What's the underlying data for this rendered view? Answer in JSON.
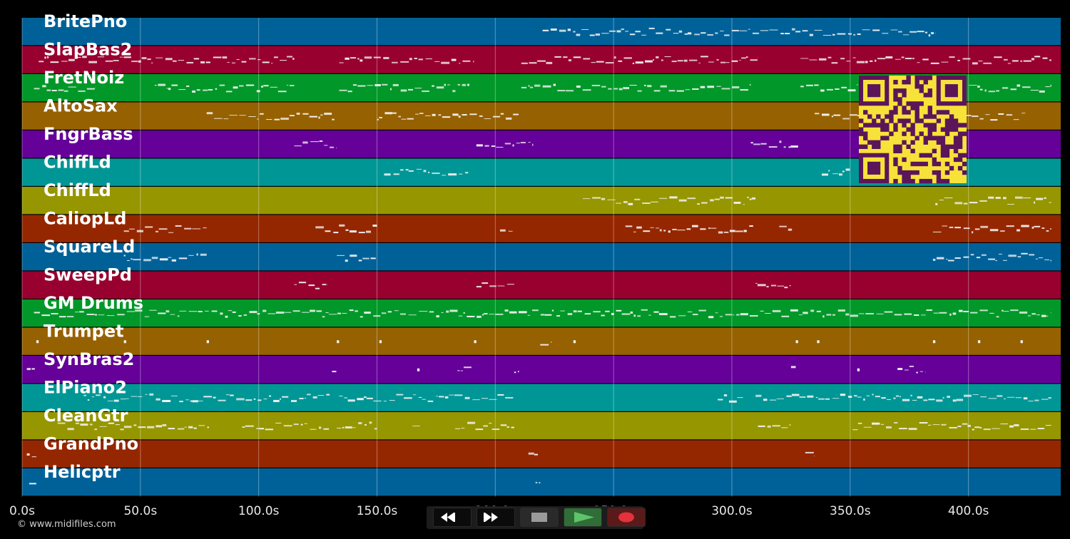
{
  "app": {
    "copyright": "© www.midifiles.com"
  },
  "timeline": {
    "ticks": [
      "0.0s",
      "50.0s",
      "100.0s",
      "150.0s",
      "200.0s",
      "250.0s",
      "300.0s",
      "350.0s",
      "400.0s"
    ],
    "duration_s": 439
  },
  "colors": {
    "background": "#000000",
    "grid": "#ffffff",
    "note": "#f2f2f2",
    "qr_background": "#f7e23a",
    "qr_foreground": "#5b1659",
    "play_accent": "#5ec36b",
    "record_accent": "#e2323c"
  },
  "tracks": [
    {
      "name": "BritePno",
      "color": "#006199",
      "notes": [
        [
          220,
          386
        ]
      ]
    },
    {
      "name": "SlapBas2",
      "color": "#980030",
      "notes": [
        [
          7,
          115
        ],
        [
          134,
          191
        ],
        [
          211,
          311
        ],
        [
          329,
          435
        ]
      ]
    },
    {
      "name": "FretNoiz",
      "color": "#019829",
      "notes": [
        [
          5,
          31
        ],
        [
          56,
          115
        ],
        [
          134,
          189
        ],
        [
          211,
          308
        ],
        [
          329,
          435
        ]
      ]
    },
    {
      "name": "AltoSax",
      "color": "#966100",
      "notes": [
        [
          78,
          132
        ],
        [
          150,
          210
        ],
        [
          335,
          355
        ],
        [
          399,
          424
        ]
      ]
    },
    {
      "name": "FngrBass",
      "color": "#650099",
      "notes": [
        [
          115,
          133
        ],
        [
          192,
          216
        ],
        [
          308,
          328
        ]
      ]
    },
    {
      "name": "ChiffLd",
      "color": "#009696",
      "notes": [
        [
          153,
          189
        ],
        [
          338,
          350
        ]
      ]
    },
    {
      "name": "ChiffLd",
      "color": "#969600",
      "notes": [
        [
          237,
          310
        ],
        [
          386,
          435
        ]
      ]
    },
    {
      "name": "CaliopLd",
      "color": "#952700",
      "notes": [
        [
          43,
          78
        ],
        [
          124,
          150
        ],
        [
          202,
          208
        ],
        [
          255,
          309
        ],
        [
          320,
          326
        ],
        [
          385,
          435
        ]
      ]
    },
    {
      "name": "SquareLd",
      "color": "#006199",
      "notes": [
        [
          43,
          78
        ],
        [
          133,
          150
        ],
        [
          385,
          435
        ]
      ]
    },
    {
      "name": "SweepPd",
      "color": "#980030",
      "notes": [
        [
          115,
          129
        ],
        [
          192,
          208
        ],
        [
          310,
          325
        ]
      ]
    },
    {
      "name": "GM Drums",
      "color": "#019829",
      "notes": [
        [
          5,
          435
        ]
      ]
    },
    {
      "name": "Trumpet",
      "color": "#966100",
      "notes": [
        [
          6,
          7
        ],
        [
          43,
          44
        ],
        [
          78,
          79
        ],
        [
          133,
          134
        ],
        [
          151,
          152
        ],
        [
          191,
          192
        ],
        [
          219,
          224
        ],
        [
          233,
          234
        ],
        [
          327,
          328
        ],
        [
          336,
          337
        ],
        [
          385,
          386
        ],
        [
          404,
          405
        ],
        [
          422,
          423
        ]
      ]
    },
    {
      "name": "SynBras2",
      "color": "#650099",
      "notes": [
        [
          2,
          6
        ],
        [
          131,
          133
        ],
        [
          167,
          168
        ],
        [
          184,
          190
        ],
        [
          208,
          210
        ],
        [
          325,
          327
        ],
        [
          353,
          354
        ],
        [
          370,
          382
        ]
      ]
    },
    {
      "name": "ElPiano2",
      "color": "#009696",
      "notes": [
        [
          26,
          130
        ],
        [
          134,
          208
        ],
        [
          294,
          305
        ],
        [
          310,
          435
        ]
      ]
    },
    {
      "name": "CleanGtr",
      "color": "#969600",
      "notes": [
        [
          15,
          79
        ],
        [
          93,
          130
        ],
        [
          133,
          150
        ],
        [
          165,
          169
        ],
        [
          183,
          208
        ],
        [
          311,
          325
        ],
        [
          351,
          435
        ]
      ]
    },
    {
      "name": "GrandPno",
      "color": "#952700",
      "notes": [
        [
          2,
          6
        ],
        [
          214,
          218
        ],
        [
          331,
          335
        ]
      ]
    },
    {
      "name": "Helicptr",
      "color": "#006199",
      "notes": [
        [
          3,
          6
        ],
        [
          217,
          219
        ]
      ]
    }
  ],
  "transport": {
    "rewind": "rewind-icon",
    "forward": "fast-forward-icon",
    "stop": "stop-icon",
    "play": "play-icon",
    "record": "record-icon"
  }
}
